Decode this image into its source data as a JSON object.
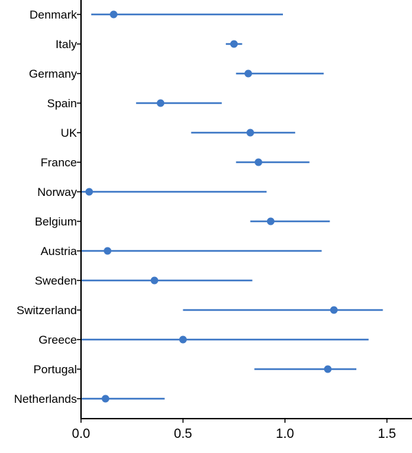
{
  "chart_data": {
    "type": "scatter",
    "title": "",
    "xlabel": "",
    "ylabel": "",
    "xlim": [
      0,
      1.6
    ],
    "grid": false,
    "legend": "none",
    "marker_color": "#3E78C6",
    "line_color": "#3E78C6",
    "categories": [
      "Denmark",
      "Italy",
      "Germany",
      "Spain",
      "UK",
      "France",
      "Norway",
      "Belgium",
      "Austria",
      "Sweden",
      "Switzerland",
      "Greece",
      "Portugal",
      "Netherlands"
    ],
    "values": [
      0.16,
      0.75,
      0.82,
      0.39,
      0.83,
      0.87,
      0.04,
      0.93,
      0.13,
      0.36,
      1.24,
      0.5,
      1.21,
      0.12
    ],
    "lower": [
      0.05,
      0.71,
      0.76,
      0.27,
      0.54,
      0.76,
      0.0,
      0.83,
      0.0,
      0.0,
      0.5,
      0.0,
      0.85,
      0.0
    ],
    "upper": [
      0.99,
      0.79,
      1.19,
      0.69,
      1.05,
      1.12,
      0.91,
      1.22,
      1.18,
      0.84,
      1.48,
      1.41,
      1.35,
      0.41
    ],
    "x_ticks": [
      0.0,
      0.5,
      1.0,
      1.5
    ],
    "x_tick_labels": [
      "0.0",
      "0.5",
      "1.0",
      "1.5"
    ]
  }
}
